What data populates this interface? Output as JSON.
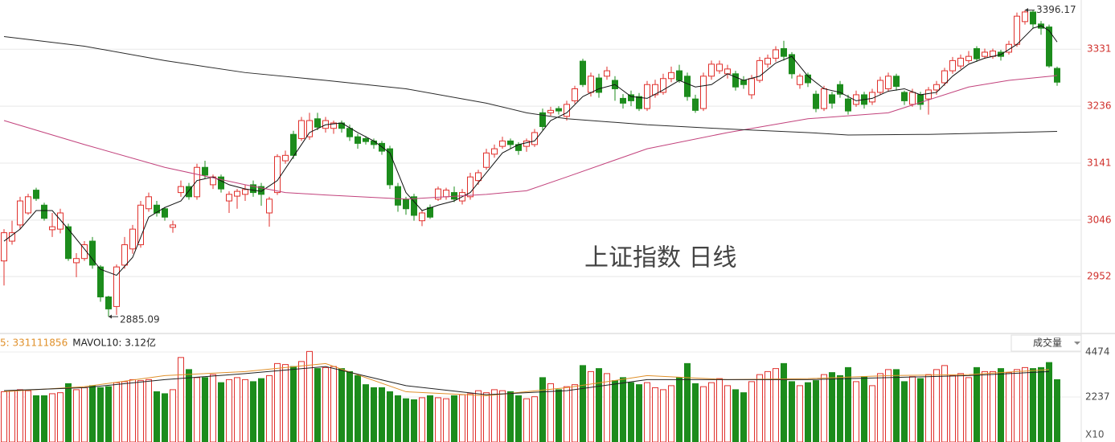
{
  "chart_data": {
    "type": "candlestick",
    "title": "上证指数 日线",
    "open": [
      2978,
      3011,
      3038,
      3058,
      3096,
      3071,
      3030,
      3031,
      3035,
      2975,
      2982,
      3011,
      2968,
      2918,
      2902,
      2971,
      2998,
      3005,
      3065,
      3071,
      3065,
      3034,
      3092,
      3102,
      3085,
      3134,
      3105,
      3118,
      3078,
      3086,
      3089,
      3105,
      3102,
      3058,
      3092,
      3145,
      3189,
      3182,
      3185,
      3215,
      3199,
      3199,
      3208,
      3199,
      3185,
      3182,
      3178,
      3174,
      3165,
      3102,
      3081,
      3085,
      3045,
      3067,
      3081,
      3085,
      3092,
      3078,
      3085,
      3112,
      3134,
      3156,
      3169,
      3178,
      3172,
      3169,
      3172,
      3225,
      3225,
      3232,
      3219,
      3245,
      3311,
      3259,
      3283,
      3286,
      3279,
      3249,
      3255,
      3252,
      3232,
      3255,
      3259,
      3282,
      3295,
      3286,
      3248,
      3232,
      3286,
      3295,
      3290,
      3290,
      3279,
      3255,
      3279,
      3306,
      3316,
      3332,
      3322,
      3272,
      3288,
      3256,
      3232,
      3255,
      3272,
      3248,
      3239,
      3255,
      3243,
      3259,
      3265,
      3286,
      3259,
      3239,
      3255,
      3248,
      3263,
      3275,
      3295,
      3303,
      3312,
      3332,
      3319,
      3319,
      3326,
      3326,
      3339,
      3377,
      3393,
      3373,
      3368,
      3299
    ],
    "high": [
      3031,
      3045,
      3085,
      3090,
      3100,
      3075,
      3058,
      3065,
      3040,
      2991,
      3011,
      3018,
      2971,
      2920,
      2972,
      3018,
      3038,
      3078,
      3092,
      3078,
      3068,
      3045,
      3112,
      3108,
      3140,
      3145,
      3122,
      3122,
      3094,
      3098,
      3105,
      3112,
      3108,
      3085,
      3156,
      3162,
      3195,
      3218,
      3225,
      3225,
      3218,
      3212,
      3212,
      3205,
      3190,
      3186,
      3182,
      3178,
      3170,
      3108,
      3085,
      3090,
      3062,
      3072,
      3102,
      3100,
      3102,
      3098,
      3125,
      3130,
      3165,
      3172,
      3185,
      3182,
      3176,
      3182,
      3198,
      3232,
      3235,
      3236,
      3245,
      3270,
      3315,
      3292,
      3290,
      3302,
      3286,
      3256,
      3262,
      3258,
      3278,
      3280,
      3290,
      3302,
      3305,
      3292,
      3255,
      3292,
      3312,
      3312,
      3305,
      3295,
      3286,
      3288,
      3318,
      3322,
      3336,
      3345,
      3326,
      3290,
      3292,
      3262,
      3270,
      3260,
      3278,
      3255,
      3262,
      3260,
      3265,
      3285,
      3292,
      3290,
      3262,
      3265,
      3260,
      3268,
      3278,
      3300,
      3318,
      3322,
      3328,
      3336,
      3332,
      3332,
      3330,
      3345,
      3392,
      3396.17,
      3396,
      3378,
      3372,
      3302
    ],
    "low": [
      2937,
      3005,
      3031,
      3055,
      3078,
      3045,
      3018,
      3024,
      2978,
      2951,
      2978,
      2965,
      2910,
      2885.09,
      2888,
      2965,
      2990,
      3000,
      3060,
      3052,
      3045,
      3025,
      3085,
      3080,
      3080,
      3115,
      3098,
      3092,
      3058,
      3065,
      3078,
      3085,
      3070,
      3035,
      3088,
      3140,
      3148,
      3178,
      3180,
      3196,
      3192,
      3190,
      3192,
      3178,
      3165,
      3172,
      3165,
      3155,
      3098,
      3060,
      3055,
      3045,
      3036,
      3048,
      3078,
      3080,
      3076,
      3072,
      3080,
      3105,
      3130,
      3150,
      3165,
      3165,
      3155,
      3160,
      3168,
      3196,
      3220,
      3222,
      3212,
      3240,
      3268,
      3252,
      3250,
      3280,
      3245,
      3232,
      3236,
      3228,
      3228,
      3250,
      3255,
      3276,
      3275,
      3245,
      3225,
      3228,
      3280,
      3290,
      3282,
      3262,
      3265,
      3248,
      3275,
      3300,
      3310,
      3312,
      3282,
      3265,
      3268,
      3226,
      3228,
      3232,
      3250,
      3222,
      3235,
      3232,
      3238,
      3255,
      3260,
      3262,
      3238,
      3235,
      3230,
      3222,
      3255,
      3270,
      3290,
      3298,
      3308,
      3310,
      3315,
      3315,
      3312,
      3322,
      3335,
      3372,
      3365,
      3355,
      3300,
      3270
    ],
    "close": [
      3025,
      3025,
      3078,
      3085,
      3082,
      3049,
      3035,
      3058,
      2982,
      2982,
      3005,
      2971,
      2918,
      2898,
      2968,
      3005,
      3031,
      3071,
      3085,
      3058,
      3051,
      3038,
      3102,
      3085,
      3134,
      3121,
      3118,
      3098,
      3089,
      3094,
      3097,
      3092,
      3089,
      3081,
      3152,
      3154,
      3154,
      3212,
      3212,
      3201,
      3212,
      3208,
      3199,
      3185,
      3174,
      3177,
      3172,
      3161,
      3105,
      3071,
      3065,
      3054,
      3058,
      3051,
      3098,
      3096,
      3081,
      3092,
      3118,
      3125,
      3158,
      3165,
      3178,
      3172,
      3162,
      3178,
      3192,
      3202,
      3229,
      3228,
      3239,
      3265,
      3272,
      3286,
      3259,
      3295,
      3265,
      3241,
      3245,
      3232,
      3272,
      3272,
      3282,
      3292,
      3279,
      3252,
      3229,
      3286,
      3306,
      3306,
      3298,
      3268,
      3272,
      3282,
      3312,
      3316,
      3330,
      3319,
      3290,
      3286,
      3275,
      3232,
      3265,
      3241,
      3256,
      3228,
      3255,
      3239,
      3259,
      3279,
      3286,
      3269,
      3245,
      3259,
      3239,
      3263,
      3272,
      3295,
      3312,
      3316,
      3319,
      3315,
      3326,
      3328,
      3319,
      3339,
      3386,
      3393,
      3373,
      3366,
      3303,
      3276
    ],
    "up_color": "#e0302c",
    "down_color": "#1c8c1c",
    "ylim": [
      2857,
      3413
    ],
    "yticks": [
      2952,
      3046,
      3141,
      3236,
      3331
    ],
    "grid": true,
    "lines": [
      {
        "color": "#111111",
        "x": [
          0,
          2,
          4,
          6,
          8,
          10,
          12,
          14,
          16,
          18,
          20,
          22,
          24,
          26,
          28,
          30,
          32,
          34,
          36,
          38,
          40,
          42,
          44,
          46,
          48,
          50,
          52,
          54,
          56,
          58,
          60,
          62,
          64,
          66,
          68,
          70,
          72,
          74,
          76,
          78,
          80,
          82,
          84,
          86,
          88,
          90,
          92,
          94,
          96,
          98,
          100,
          102,
          104,
          106,
          108,
          110,
          112,
          114,
          116,
          118,
          120,
          122,
          124,
          126,
          128,
          129,
          130,
          131
        ],
        "values": [
          3011,
          3031,
          3062,
          3062,
          3031,
          2998,
          2964,
          2954,
          2984,
          3051,
          3067,
          3078,
          3112,
          3118,
          3105,
          3098,
          3094,
          3112,
          3152,
          3192,
          3205,
          3208,
          3192,
          3178,
          3158,
          3092,
          3062,
          3071,
          3078,
          3092,
          3125,
          3158,
          3172,
          3178,
          3212,
          3225,
          3252,
          3265,
          3272,
          3252,
          3249,
          3263,
          3279,
          3268,
          3272,
          3290,
          3279,
          3286,
          3308,
          3319,
          3286,
          3265,
          3259,
          3245,
          3249,
          3261,
          3265,
          3255,
          3259,
          3286,
          3306,
          3316,
          3322,
          3339,
          3366,
          3370,
          3362,
          3343
        ]
      },
      {
        "color": "#c2427c",
        "x": [
          0,
          10,
          20,
          30,
          35,
          40,
          50,
          60,
          65,
          70,
          80,
          90,
          100,
          110,
          120,
          125,
          131
        ],
        "values": [
          3212,
          3172,
          3134,
          3105,
          3092,
          3088,
          3081,
          3089,
          3095,
          3118,
          3165,
          3192,
          3215,
          3225,
          3268,
          3279,
          3287
        ]
      },
      {
        "color": "#2a2a2a",
        "x": [
          0,
          10,
          20,
          30,
          40,
          50,
          60,
          65,
          70,
          80,
          90,
          100,
          105,
          115,
          125,
          131
        ],
        "values": [
          3352,
          3336,
          3312,
          3292,
          3279,
          3265,
          3241,
          3225,
          3215,
          3205,
          3198,
          3192,
          3188,
          3189,
          3192,
          3194
        ]
      }
    ],
    "annotations": [
      {
        "label": "3396.17",
        "index": 127,
        "field": "high"
      },
      {
        "label": "2885.09",
        "index": 13,
        "field": "low"
      }
    ],
    "volume": {
      "values": [
        2500,
        2550,
        2600,
        2550,
        2300,
        2300,
        2400,
        2450,
        2900,
        2600,
        2700,
        2800,
        2700,
        2750,
        2950,
        3000,
        3100,
        3050,
        3100,
        2500,
        2400,
        2600,
        4200,
        3600,
        3200,
        3200,
        3350,
        2950,
        3100,
        3200,
        3100,
        3000,
        3150,
        3300,
        3900,
        3850,
        3750,
        4000,
        4500,
        3650,
        3700,
        3750,
        3650,
        3500,
        3300,
        2850,
        2700,
        2700,
        2500,
        2300,
        2150,
        2100,
        2200,
        2300,
        2200,
        2150,
        2300,
        2350,
        2400,
        2550,
        2450,
        2600,
        2550,
        2500,
        2300,
        2150,
        2250,
        3200,
        2900,
        2600,
        2750,
        2850,
        3800,
        3500,
        3650,
        3400,
        3050,
        3200,
        2950,
        2850,
        2950,
        2700,
        2600,
        2800,
        3200,
        3900,
        2900,
        2750,
        2950,
        3150,
        2800,
        2600,
        2450,
        3000,
        3350,
        3500,
        3650,
        3900,
        3000,
        2800,
        2950,
        3050,
        3350,
        3450,
        3300,
        3700,
        3000,
        3250,
        2800,
        3400,
        3600,
        3600,
        3000,
        3250,
        3150,
        3350,
        3600,
        3800,
        3300,
        3400,
        3200,
        3700,
        3500,
        3500,
        3650,
        3450,
        3600,
        3700,
        3650,
        3700,
        3950,
        3100
      ],
      "ylim": [
        0,
        4474
      ],
      "yticks": [
        2237,
        4474
      ],
      "unit_label": "X10",
      "selector": "成交量",
      "legend": [
        {
          "text": "5: 331111856",
          "color": "#e0902a"
        },
        {
          "text": "MAVOL10: 3.12亿",
          "color": "#222222"
        }
      ],
      "lines": [
        {
          "color": "#e0902a",
          "x": [
            0,
            10,
            20,
            30,
            40,
            50,
            60,
            70,
            80,
            90,
            100,
            110,
            120,
            130
          ],
          "values": [
            2500,
            2750,
            3300,
            3500,
            3900,
            2500,
            2300,
            2700,
            3300,
            3100,
            3150,
            3300,
            3350,
            3600
          ]
        },
        {
          "color": "#222222",
          "x": [
            0,
            10,
            20,
            30,
            40,
            50,
            60,
            70,
            80,
            90,
            100,
            110,
            120,
            130
          ],
          "values": [
            2550,
            2700,
            3100,
            3400,
            3750,
            2800,
            2350,
            2550,
            3100,
            3100,
            3100,
            3200,
            3300,
            3500
          ]
        }
      ]
    }
  }
}
